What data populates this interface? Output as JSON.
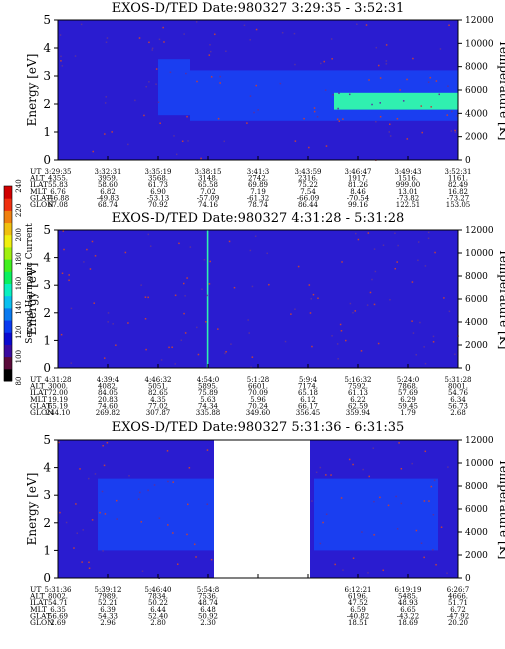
{
  "colorbar": {
    "label": "Second Harmonic Current",
    "ticks": [
      "80",
      "100",
      "120",
      "140",
      "160",
      "180",
      "200",
      "220",
      "240"
    ],
    "colors": [
      "#000000",
      "#5a0a3a",
      "#3a0aa0",
      "#0a0ad0",
      "#0a3af0",
      "#0a7af0",
      "#0ac0f0",
      "#0af0c0",
      "#0af060",
      "#40f020",
      "#a0f010",
      "#f0f010",
      "#f0c010",
      "#f08010",
      "#f03010",
      "#d00000"
    ]
  },
  "colors": {
    "background": "#2a1cd0",
    "band": "#1a3ef0",
    "bright_band": "#30f0b0",
    "gap": "#ffffff"
  },
  "chart_data": [
    {
      "type": "heatmap",
      "title": "EXOS-D/TED  Date:980327  3:29:35 - 3:52:31",
      "ylabel": "Energy [eV]",
      "y2label": "Temperature [K]",
      "ylim": [
        0,
        5
      ],
      "y2lim": [
        0,
        12000
      ],
      "yticks": [
        "0",
        "1",
        "2",
        "3",
        "4",
        "5"
      ],
      "y2ticks": [
        "0",
        "2000",
        "4000",
        "6000",
        "8000",
        "10000",
        "12000"
      ],
      "row_labels": [
        "UT",
        "ALT",
        "ILAT",
        "MLT",
        "GLAT",
        "GLON"
      ],
      "columns": [
        [
          "3:29:35",
          "4355.",
          "55.83",
          "6.76",
          "-46.88",
          "67.08"
        ],
        [
          "3:32:31",
          "3959.",
          "58.60",
          "6.82",
          "-49.83",
          "68.74"
        ],
        [
          "3:35:19",
          "3568.",
          "61.73",
          "6.90",
          "-53.13",
          "70.92"
        ],
        [
          "3:38:15",
          "3148.",
          "65.58",
          "7.02",
          "-57.09",
          "74.16"
        ],
        [
          "3:41:3",
          "2742.",
          "69.89",
          "7.19",
          "-61.32",
          "78.74"
        ],
        [
          "3:43:59",
          "2316.",
          "75.22",
          "7.54",
          "-66.09",
          "86.44"
        ],
        [
          "3:46:47",
          "1917.",
          "81.26",
          "8.46",
          "-70.54",
          "99.16"
        ],
        [
          "3:49:43",
          "1516.",
          "999.00",
          "13.01",
          "-73.82",
          "122.51"
        ],
        [
          "3:52:31",
          "1161.",
          "82.49",
          "16.82",
          "-73.27",
          "153.05"
        ]
      ],
      "features": [
        {
          "from": 0.25,
          "to": 0.33,
          "elo": 1.6,
          "ehi": 3.6,
          "level": "band"
        },
        {
          "from": 0.33,
          "to": 1.0,
          "elo": 1.4,
          "ehi": 3.2,
          "level": "band"
        },
        {
          "from": 0.69,
          "to": 1.0,
          "elo": 1.8,
          "ehi": 2.4,
          "level": "bright"
        }
      ],
      "gaps": []
    },
    {
      "type": "heatmap",
      "title": "EXOS-D/TED  Date:980327  4:31:28 - 5:31:28",
      "ylabel": "Energy [eV]",
      "y2label": "Temperature [K]",
      "ylim": [
        0,
        5
      ],
      "y2lim": [
        0,
        12000
      ],
      "yticks": [
        "0",
        "1",
        "2",
        "3",
        "4",
        "5"
      ],
      "y2ticks": [
        "0",
        "2000",
        "4000",
        "6000",
        "8000",
        "10000",
        "12000"
      ],
      "row_labels": [
        "UT",
        "ALT",
        "ILAT",
        "MLT",
        "GLAT",
        "GLON"
      ],
      "columns": [
        [
          "4:31:28",
          "3000.",
          "72.00",
          "19.19",
          "65.19",
          "244.10"
        ],
        [
          "4:39:4",
          "4082.",
          "84.05",
          "20.83",
          "74.60",
          "269.82"
        ],
        [
          "4:46:32",
          "5051.",
          "82.65",
          "4.35",
          "77.02",
          "307.87"
        ],
        [
          "4:54:0",
          "5895.",
          "75.89",
          "5.63",
          "74.34",
          "335.88"
        ],
        [
          "5:1:28",
          "6601.",
          "70.09",
          "5.96",
          "70.24",
          "349.60"
        ],
        [
          "5:9:4",
          "7174.",
          "65.18",
          "6.12",
          "66.17",
          "356.45"
        ],
        [
          "5:16:32",
          "7592.",
          "61.13",
          "6.22",
          "62.59",
          "359.94"
        ],
        [
          "5:24:0",
          "7868.",
          "57.69",
          "6.29",
          "59.45",
          "1.79"
        ],
        [
          "5:31:28",
          "8001.",
          "54.76",
          "6.34",
          "56.73",
          "2.68"
        ]
      ],
      "features": [
        {
          "from": 0.372,
          "to": 0.376,
          "elo": 0.0,
          "ehi": 5.0,
          "level": "bright"
        }
      ],
      "gaps": []
    },
    {
      "type": "heatmap",
      "title": "EXOS-D/TED  Date:980327  5:31:36 - 6:31:35",
      "ylabel": "Energy [eV]",
      "y2label": "Temperature [K]",
      "ylim": [
        0,
        5
      ],
      "y2lim": [
        0,
        12000
      ],
      "yticks": [
        "0",
        "1",
        "2",
        "3",
        "4",
        "5"
      ],
      "y2ticks": [
        "0",
        "2000",
        "4000",
        "6000",
        "8000",
        "10000",
        "12000"
      ],
      "row_labels": [
        "UT",
        "ALT",
        "ILAT",
        "MLT",
        "GLAT",
        "GLON"
      ],
      "columns": [
        [
          "5:31:36",
          "8002.",
          "54.71",
          "6.35",
          "56.69",
          "2.69"
        ],
        [
          "5:39:12",
          "7989.",
          "52.21",
          "6.39",
          "54.33",
          "2.96"
        ],
        [
          "5:46:40",
          "7834.",
          "50.22",
          "6.44",
          "52.40",
          "2.80"
        ],
        [
          "5:54:8",
          "7536.",
          "48.74",
          "6.48",
          "50.92",
          "2.30"
        ],
        [
          "",
          "",
          "",
          "",
          "",
          ""
        ],
        [
          "",
          "",
          "",
          "",
          "",
          ""
        ],
        [
          "6:12:21",
          "6196.",
          "47.52",
          "6.59",
          "-40.82",
          "18.51"
        ],
        [
          "6:19:19",
          "5485.",
          "48.93",
          "6.65",
          "-43.22",
          "18.69"
        ],
        [
          "6:26:7",
          "4666.",
          "51.71",
          "6.72",
          "-47.92",
          "20.20"
        ]
      ],
      "features": [
        {
          "from": 0.1,
          "to": 0.39,
          "elo": 1.0,
          "ehi": 3.6,
          "level": "band"
        },
        {
          "from": 0.64,
          "to": 0.95,
          "elo": 1.0,
          "ehi": 3.6,
          "level": "band"
        }
      ],
      "gaps": [
        {
          "from": 0.39,
          "to": 0.63
        }
      ]
    }
  ]
}
